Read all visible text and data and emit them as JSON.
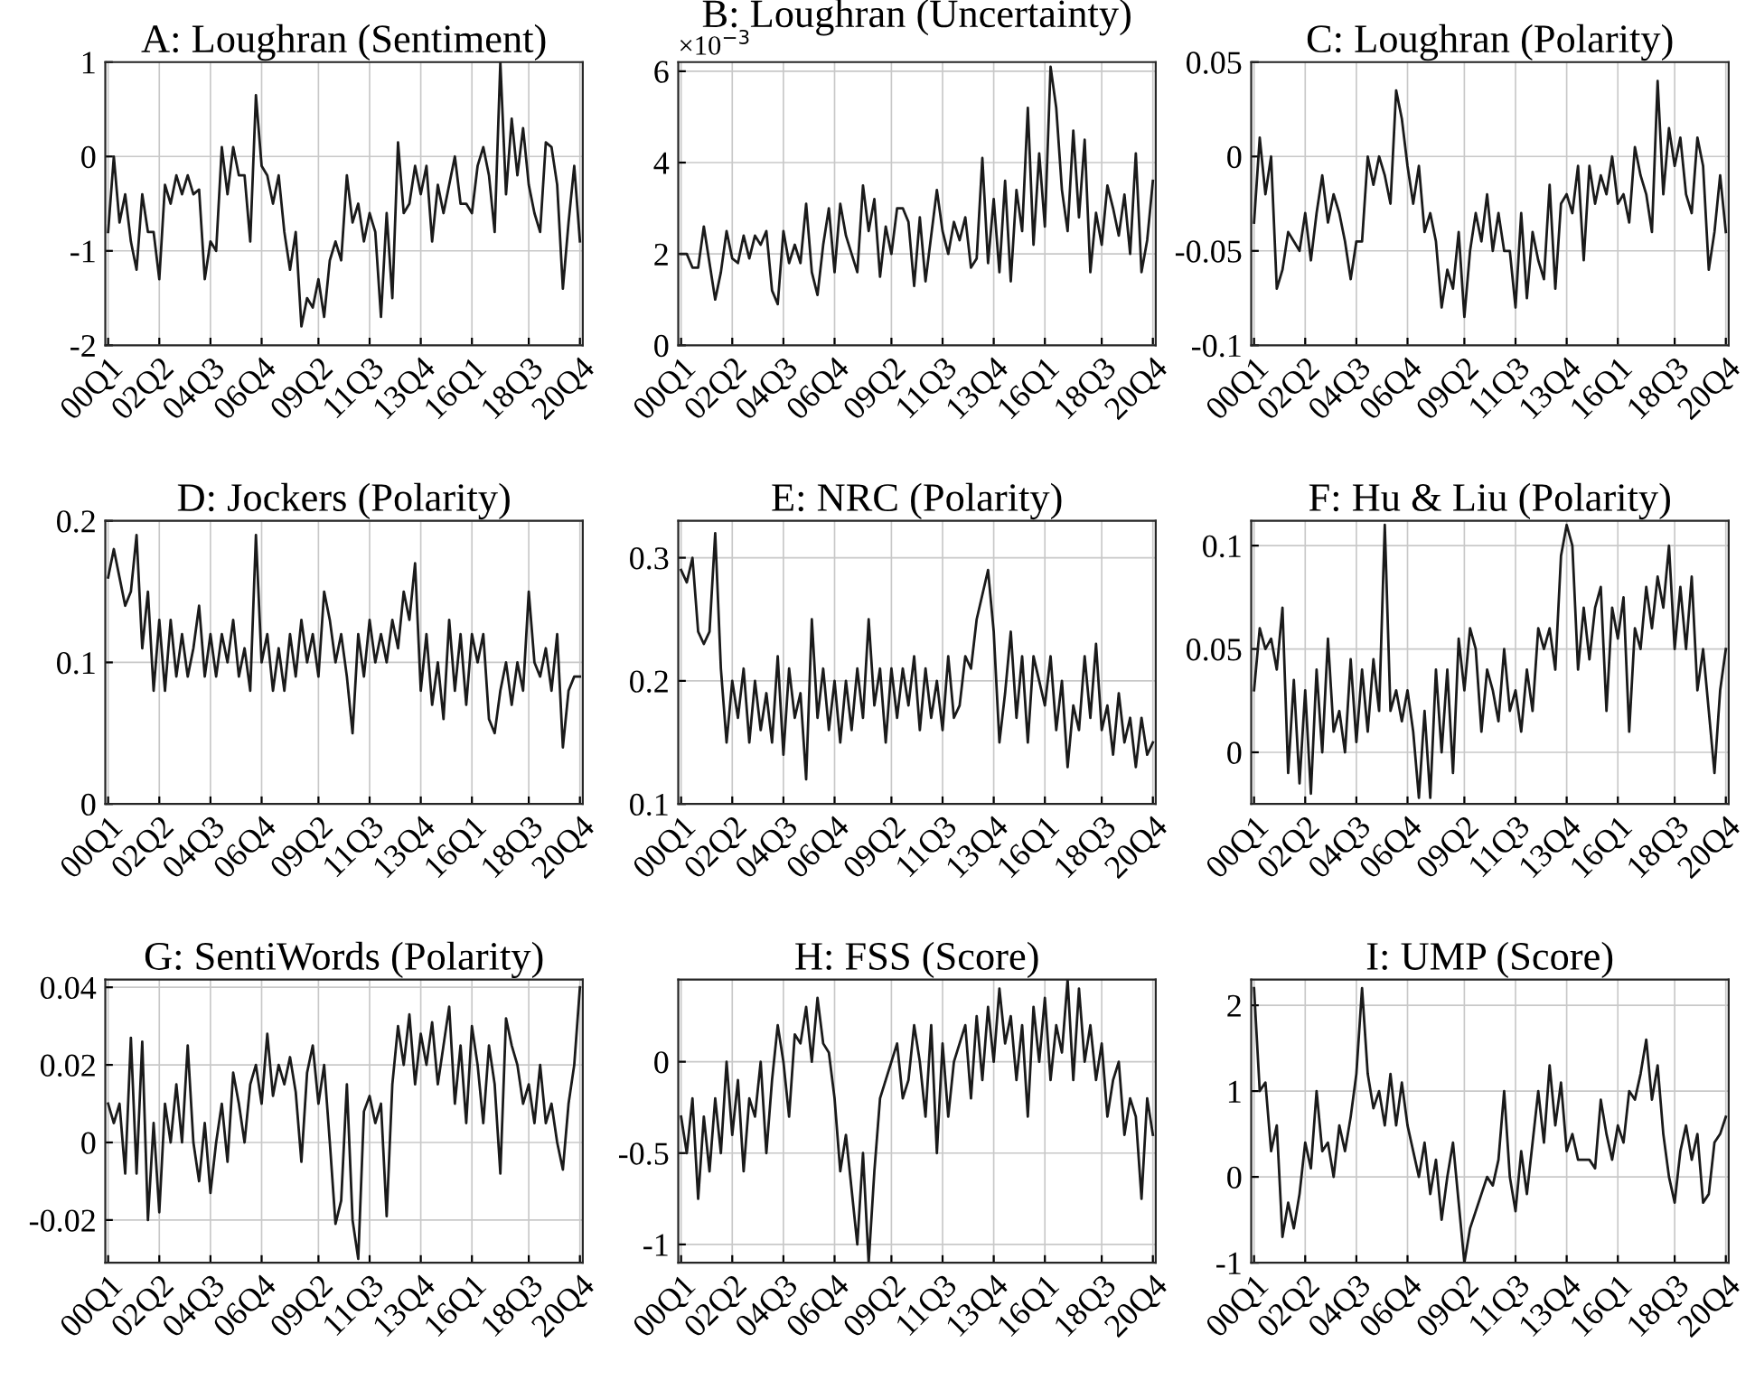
{
  "chart_data": [
    {
      "type": "line",
      "title": "A: Loughran (Sentiment)",
      "grid": true,
      "ylim": [
        -2,
        1
      ],
      "yticks": [
        -2,
        -1,
        0,
        1
      ],
      "categories": [
        "00Q1",
        null,
        null,
        null,
        null,
        null,
        null,
        null,
        null,
        "02Q2",
        null,
        null,
        null,
        null,
        null,
        null,
        null,
        null,
        "04Q3",
        null,
        null,
        null,
        null,
        null,
        null,
        null,
        null,
        "06Q4",
        null,
        null,
        null,
        null,
        null,
        null,
        null,
        null,
        null,
        "09Q2",
        null,
        null,
        null,
        null,
        null,
        null,
        null,
        null,
        "11Q3",
        null,
        null,
        null,
        null,
        null,
        null,
        null,
        null,
        "13Q4",
        null,
        null,
        null,
        null,
        null,
        null,
        null,
        null,
        "16Q1",
        null,
        null,
        null,
        null,
        null,
        null,
        null,
        null,
        null,
        "18Q3",
        null,
        null,
        null,
        null,
        null,
        null,
        null,
        null,
        "20Q4"
      ],
      "series": [
        {
          "color": "#1a1a1a",
          "values": [
            -0.8,
            0.0,
            -0.7,
            -0.4,
            -0.9,
            -1.2,
            -0.4,
            -0.8,
            -0.8,
            -1.3,
            -0.3,
            -0.5,
            -0.2,
            -0.4,
            -0.2,
            -0.4,
            -0.35,
            -1.3,
            -0.9,
            -1.0,
            0.1,
            -0.4,
            0.1,
            -0.2,
            -0.2,
            -0.9,
            0.65,
            -0.1,
            -0.2,
            -0.5,
            -0.2,
            -0.8,
            -1.2,
            -0.8,
            -1.8,
            -1.5,
            -1.6,
            -1.3,
            -1.7,
            -1.1,
            -0.9,
            -1.1,
            -0.2,
            -0.7,
            -0.5,
            -0.9,
            -0.6,
            -0.8,
            -1.7,
            -0.6,
            -1.5,
            0.15,
            -0.6,
            -0.5,
            -0.1,
            -0.4,
            -0.1,
            -0.9,
            -0.3,
            -0.6,
            -0.3,
            0.0,
            -0.5,
            -0.5,
            -0.6,
            -0.1,
            0.1,
            -0.2,
            -0.8,
            1.0,
            -0.4,
            0.4,
            -0.2,
            0.3,
            -0.3,
            -0.6,
            -0.8,
            0.15,
            0.1,
            -0.3,
            -1.4,
            -0.7,
            -0.1,
            -0.9
          ]
        }
      ]
    },
    {
      "type": "line",
      "title": "B: Loughran (Uncertainty)",
      "annotations": [
        "×10$^{−3}$"
      ],
      "grid": true,
      "ylim": [
        0,
        6.2
      ],
      "yticks": [
        0,
        2,
        4,
        6
      ],
      "categories": [
        "00Q1",
        null,
        null,
        null,
        null,
        null,
        null,
        null,
        null,
        "02Q2",
        null,
        null,
        null,
        null,
        null,
        null,
        null,
        null,
        "04Q3",
        null,
        null,
        null,
        null,
        null,
        null,
        null,
        null,
        "06Q4",
        null,
        null,
        null,
        null,
        null,
        null,
        null,
        null,
        null,
        "09Q2",
        null,
        null,
        null,
        null,
        null,
        null,
        null,
        null,
        "11Q3",
        null,
        null,
        null,
        null,
        null,
        null,
        null,
        null,
        "13Q4",
        null,
        null,
        null,
        null,
        null,
        null,
        null,
        null,
        "16Q1",
        null,
        null,
        null,
        null,
        null,
        null,
        null,
        null,
        null,
        "18Q3",
        null,
        null,
        null,
        null,
        null,
        null,
        null,
        null,
        "20Q4"
      ],
      "series": [
        {
          "color": "#1a1a1a",
          "values": [
            2.0,
            2.0,
            1.7,
            1.7,
            2.6,
            1.8,
            1.0,
            1.6,
            2.5,
            1.9,
            1.8,
            2.4,
            1.9,
            2.4,
            2.2,
            2.5,
            1.2,
            0.9,
            2.5,
            1.8,
            2.2,
            1.8,
            3.1,
            1.6,
            1.1,
            2.2,
            3.0,
            1.6,
            3.1,
            2.4,
            2.0,
            1.6,
            3.5,
            2.5,
            3.2,
            1.5,
            2.6,
            2.0,
            3.0,
            3.0,
            2.7,
            1.3,
            2.8,
            1.4,
            2.4,
            3.4,
            2.5,
            2.0,
            2.7,
            2.3,
            2.8,
            1.7,
            1.9,
            4.1,
            1.8,
            3.2,
            1.6,
            3.6,
            1.4,
            3.4,
            2.5,
            5.2,
            2.2,
            4.2,
            2.6,
            6.1,
            5.2,
            3.4,
            2.5,
            4.7,
            2.8,
            4.5,
            1.6,
            2.9,
            2.2,
            3.5,
            3.0,
            2.4,
            3.3,
            2.0,
            4.2,
            1.6,
            2.3,
            3.6
          ]
        }
      ]
    },
    {
      "type": "line",
      "title": "C: Loughran (Polarity)",
      "grid": true,
      "ylim": [
        -0.1,
        0.05
      ],
      "yticks": [
        -0.1,
        -0.05,
        0,
        0.05
      ],
      "categories": [
        "00Q1",
        null,
        null,
        null,
        null,
        null,
        null,
        null,
        null,
        "02Q2",
        null,
        null,
        null,
        null,
        null,
        null,
        null,
        null,
        "04Q3",
        null,
        null,
        null,
        null,
        null,
        null,
        null,
        null,
        "06Q4",
        null,
        null,
        null,
        null,
        null,
        null,
        null,
        null,
        null,
        "09Q2",
        null,
        null,
        null,
        null,
        null,
        null,
        null,
        null,
        "11Q3",
        null,
        null,
        null,
        null,
        null,
        null,
        null,
        null,
        "13Q4",
        null,
        null,
        null,
        null,
        null,
        null,
        null,
        null,
        "16Q1",
        null,
        null,
        null,
        null,
        null,
        null,
        null,
        null,
        null,
        "18Q3",
        null,
        null,
        null,
        null,
        null,
        null,
        null,
        null,
        "20Q4"
      ],
      "series": [
        {
          "color": "#1a1a1a",
          "values": [
            -0.035,
            0.01,
            -0.02,
            0.0,
            -0.07,
            -0.06,
            -0.04,
            -0.045,
            -0.05,
            -0.03,
            -0.055,
            -0.03,
            -0.01,
            -0.035,
            -0.02,
            -0.03,
            -0.045,
            -0.065,
            -0.045,
            -0.045,
            0.0,
            -0.015,
            0.0,
            -0.01,
            -0.025,
            0.035,
            0.02,
            -0.005,
            -0.025,
            -0.005,
            -0.04,
            -0.03,
            -0.045,
            -0.08,
            -0.06,
            -0.07,
            -0.04,
            -0.085,
            -0.05,
            -0.03,
            -0.045,
            -0.02,
            -0.05,
            -0.03,
            -0.05,
            -0.05,
            -0.08,
            -0.03,
            -0.075,
            -0.04,
            -0.055,
            -0.065,
            -0.015,
            -0.07,
            -0.025,
            -0.02,
            -0.03,
            -0.005,
            -0.055,
            -0.005,
            -0.025,
            -0.01,
            -0.02,
            0.0,
            -0.025,
            -0.02,
            -0.035,
            0.005,
            -0.01,
            -0.02,
            -0.04,
            0.04,
            -0.02,
            0.015,
            -0.005,
            0.01,
            -0.02,
            -0.03,
            0.01,
            -0.005,
            -0.06,
            -0.04,
            -0.01,
            -0.04
          ]
        }
      ]
    },
    {
      "type": "line",
      "title": "D: Jockers (Polarity)",
      "grid": true,
      "ylim": [
        0,
        0.2
      ],
      "yticks": [
        0,
        0.1,
        0.2
      ],
      "categories": [
        "00Q1",
        null,
        null,
        null,
        null,
        null,
        null,
        null,
        null,
        "02Q2",
        null,
        null,
        null,
        null,
        null,
        null,
        null,
        null,
        "04Q3",
        null,
        null,
        null,
        null,
        null,
        null,
        null,
        null,
        "06Q4",
        null,
        null,
        null,
        null,
        null,
        null,
        null,
        null,
        null,
        "09Q2",
        null,
        null,
        null,
        null,
        null,
        null,
        null,
        null,
        "11Q3",
        null,
        null,
        null,
        null,
        null,
        null,
        null,
        null,
        "13Q4",
        null,
        null,
        null,
        null,
        null,
        null,
        null,
        null,
        "16Q1",
        null,
        null,
        null,
        null,
        null,
        null,
        null,
        null,
        null,
        "18Q3",
        null,
        null,
        null,
        null,
        null,
        null,
        null,
        null,
        "20Q4"
      ],
      "series": [
        {
          "color": "#1a1a1a",
          "values": [
            0.16,
            0.18,
            0.16,
            0.14,
            0.15,
            0.19,
            0.11,
            0.15,
            0.08,
            0.13,
            0.08,
            0.13,
            0.09,
            0.12,
            0.09,
            0.11,
            0.14,
            0.09,
            0.12,
            0.09,
            0.12,
            0.1,
            0.13,
            0.09,
            0.11,
            0.08,
            0.19,
            0.1,
            0.12,
            0.08,
            0.11,
            0.08,
            0.12,
            0.09,
            0.13,
            0.1,
            0.12,
            0.09,
            0.15,
            0.13,
            0.1,
            0.12,
            0.09,
            0.05,
            0.12,
            0.09,
            0.13,
            0.1,
            0.12,
            0.1,
            0.13,
            0.11,
            0.15,
            0.13,
            0.17,
            0.08,
            0.12,
            0.07,
            0.1,
            0.06,
            0.13,
            0.08,
            0.12,
            0.07,
            0.12,
            0.1,
            0.12,
            0.06,
            0.05,
            0.08,
            0.1,
            0.07,
            0.1,
            0.08,
            0.15,
            0.1,
            0.09,
            0.11,
            0.08,
            0.12,
            0.04,
            0.08,
            0.09,
            0.09
          ]
        }
      ]
    },
    {
      "type": "line",
      "title": "E: NRC (Polarity)",
      "grid": true,
      "ylim": [
        0.1,
        0.33
      ],
      "yticks": [
        0.1,
        0.2,
        0.3
      ],
      "categories": [
        "00Q1",
        null,
        null,
        null,
        null,
        null,
        null,
        null,
        null,
        "02Q2",
        null,
        null,
        null,
        null,
        null,
        null,
        null,
        null,
        "04Q3",
        null,
        null,
        null,
        null,
        null,
        null,
        null,
        null,
        "06Q4",
        null,
        null,
        null,
        null,
        null,
        null,
        null,
        null,
        null,
        "09Q2",
        null,
        null,
        null,
        null,
        null,
        null,
        null,
        null,
        "11Q3",
        null,
        null,
        null,
        null,
        null,
        null,
        null,
        null,
        "13Q4",
        null,
        null,
        null,
        null,
        null,
        null,
        null,
        null,
        "16Q1",
        null,
        null,
        null,
        null,
        null,
        null,
        null,
        null,
        null,
        "18Q3",
        null,
        null,
        null,
        null,
        null,
        null,
        null,
        null,
        "20Q4"
      ],
      "series": [
        {
          "color": "#1a1a1a",
          "values": [
            0.29,
            0.28,
            0.3,
            0.24,
            0.23,
            0.24,
            0.32,
            0.21,
            0.15,
            0.2,
            0.17,
            0.21,
            0.15,
            0.2,
            0.16,
            0.19,
            0.15,
            0.22,
            0.14,
            0.21,
            0.17,
            0.19,
            0.12,
            0.25,
            0.17,
            0.21,
            0.16,
            0.2,
            0.15,
            0.2,
            0.16,
            0.21,
            0.17,
            0.25,
            0.18,
            0.21,
            0.15,
            0.21,
            0.17,
            0.21,
            0.18,
            0.22,
            0.16,
            0.21,
            0.17,
            0.2,
            0.16,
            0.22,
            0.17,
            0.18,
            0.22,
            0.21,
            0.25,
            0.27,
            0.29,
            0.24,
            0.15,
            0.19,
            0.24,
            0.17,
            0.22,
            0.15,
            0.22,
            0.2,
            0.18,
            0.22,
            0.16,
            0.2,
            0.13,
            0.18,
            0.16,
            0.22,
            0.17,
            0.23,
            0.16,
            0.18,
            0.14,
            0.19,
            0.15,
            0.17,
            0.13,
            0.17,
            0.14,
            0.15
          ]
        }
      ]
    },
    {
      "type": "line",
      "title": "F: Hu & Liu (Polarity)",
      "grid": true,
      "ylim": [
        -0.025,
        0.112
      ],
      "yticks": [
        0,
        0.05,
        0.1
      ],
      "categories": [
        "00Q1",
        null,
        null,
        null,
        null,
        null,
        null,
        null,
        null,
        "02Q2",
        null,
        null,
        null,
        null,
        null,
        null,
        null,
        null,
        "04Q3",
        null,
        null,
        null,
        null,
        null,
        null,
        null,
        null,
        "06Q4",
        null,
        null,
        null,
        null,
        null,
        null,
        null,
        null,
        null,
        "09Q2",
        null,
        null,
        null,
        null,
        null,
        null,
        null,
        null,
        "11Q3",
        null,
        null,
        null,
        null,
        null,
        null,
        null,
        null,
        "13Q4",
        null,
        null,
        null,
        null,
        null,
        null,
        null,
        null,
        "16Q1",
        null,
        null,
        null,
        null,
        null,
        null,
        null,
        null,
        null,
        "18Q3",
        null,
        null,
        null,
        null,
        null,
        null,
        null,
        null,
        "20Q4"
      ],
      "series": [
        {
          "color": "#1a1a1a",
          "values": [
            0.03,
            0.06,
            0.05,
            0.055,
            0.04,
            0.07,
            -0.01,
            0.035,
            -0.015,
            0.03,
            -0.02,
            0.04,
            0.0,
            0.055,
            0.01,
            0.02,
            0.0,
            0.045,
            0.005,
            0.04,
            0.01,
            0.045,
            0.02,
            0.11,
            0.02,
            0.03,
            0.015,
            0.03,
            0.01,
            -0.022,
            0.02,
            -0.022,
            0.04,
            0.0,
            0.04,
            -0.01,
            0.055,
            0.03,
            0.06,
            0.05,
            0.01,
            0.04,
            0.03,
            0.015,
            0.05,
            0.02,
            0.03,
            0.01,
            0.04,
            0.02,
            0.06,
            0.05,
            0.06,
            0.04,
            0.095,
            0.11,
            0.1,
            0.04,
            0.07,
            0.045,
            0.07,
            0.08,
            0.02,
            0.07,
            0.055,
            0.075,
            0.01,
            0.06,
            0.05,
            0.08,
            0.06,
            0.085,
            0.07,
            0.1,
            0.05,
            0.08,
            0.05,
            0.085,
            0.03,
            0.05,
            0.02,
            -0.01,
            0.03,
            0.05
          ]
        }
      ]
    },
    {
      "type": "line",
      "title": "G: SentiWords (Polarity)",
      "grid": true,
      "ylim": [
        -0.031,
        0.042
      ],
      "yticks": [
        -0.02,
        0,
        0.02,
        0.04
      ],
      "categories": [
        "00Q1",
        null,
        null,
        null,
        null,
        null,
        null,
        null,
        null,
        "02Q2",
        null,
        null,
        null,
        null,
        null,
        null,
        null,
        null,
        "04Q3",
        null,
        null,
        null,
        null,
        null,
        null,
        null,
        null,
        "06Q4",
        null,
        null,
        null,
        null,
        null,
        null,
        null,
        null,
        null,
        "09Q2",
        null,
        null,
        null,
        null,
        null,
        null,
        null,
        null,
        "11Q3",
        null,
        null,
        null,
        null,
        null,
        null,
        null,
        null,
        "13Q4",
        null,
        null,
        null,
        null,
        null,
        null,
        null,
        null,
        "16Q1",
        null,
        null,
        null,
        null,
        null,
        null,
        null,
        null,
        null,
        "18Q3",
        null,
        null,
        null,
        null,
        null,
        null,
        null,
        null,
        "20Q4"
      ],
      "series": [
        {
          "color": "#1a1a1a",
          "values": [
            0.01,
            0.005,
            0.01,
            -0.008,
            0.027,
            -0.008,
            0.026,
            -0.02,
            0.005,
            -0.018,
            0.01,
            0.0,
            0.015,
            0.0,
            0.025,
            0.0,
            -0.01,
            0.005,
            -0.013,
            0.0,
            0.01,
            -0.005,
            0.018,
            0.01,
            0.0,
            0.015,
            0.02,
            0.01,
            0.028,
            0.012,
            0.02,
            0.015,
            0.022,
            0.013,
            -0.005,
            0.018,
            0.025,
            0.01,
            0.02,
            0.0,
            -0.021,
            -0.015,
            0.015,
            -0.02,
            -0.03,
            0.008,
            0.012,
            0.005,
            0.01,
            -0.019,
            0.015,
            0.03,
            0.02,
            0.033,
            0.015,
            0.028,
            0.02,
            0.031,
            0.015,
            0.025,
            0.035,
            0.01,
            0.025,
            0.005,
            0.03,
            0.02,
            0.005,
            0.025,
            0.015,
            -0.008,
            0.032,
            0.025,
            0.02,
            0.01,
            0.015,
            0.005,
            0.02,
            0.005,
            0.01,
            0.0,
            -0.007,
            0.01,
            0.02,
            0.04
          ]
        }
      ]
    },
    {
      "type": "line",
      "title": "H: FSS (Score)",
      "grid": true,
      "ylim": [
        -1.1,
        0.45
      ],
      "yticks": [
        -1,
        -0.5,
        0
      ],
      "categories": [
        "00Q1",
        null,
        null,
        null,
        null,
        null,
        null,
        null,
        null,
        "02Q2",
        null,
        null,
        null,
        null,
        null,
        null,
        null,
        null,
        "04Q3",
        null,
        null,
        null,
        null,
        null,
        null,
        null,
        null,
        "06Q4",
        null,
        null,
        null,
        null,
        null,
        null,
        null,
        null,
        null,
        "09Q2",
        null,
        null,
        null,
        null,
        null,
        null,
        null,
        null,
        "11Q3",
        null,
        null,
        null,
        null,
        null,
        null,
        null,
        null,
        "13Q4",
        null,
        null,
        null,
        null,
        null,
        null,
        null,
        null,
        "16Q1",
        null,
        null,
        null,
        null,
        null,
        null,
        null,
        null,
        null,
        "18Q3",
        null,
        null,
        null,
        null,
        null,
        null,
        null,
        null,
        "20Q4"
      ],
      "series": [
        {
          "color": "#1a1a1a",
          "values": [
            -0.3,
            -0.5,
            -0.2,
            -0.75,
            -0.3,
            -0.6,
            -0.2,
            -0.5,
            0.0,
            -0.4,
            -0.1,
            -0.6,
            -0.2,
            -0.3,
            0.0,
            -0.5,
            -0.1,
            0.2,
            0.0,
            -0.3,
            0.15,
            0.1,
            0.3,
            0.0,
            0.35,
            0.1,
            0.05,
            -0.2,
            -0.6,
            -0.4,
            -0.7,
            -1.0,
            -0.5,
            -1.1,
            -0.6,
            -0.2,
            -0.1,
            0.0,
            0.1,
            -0.2,
            -0.1,
            0.2,
            0.0,
            -0.3,
            0.2,
            -0.5,
            0.1,
            -0.3,
            0.0,
            0.1,
            0.2,
            -0.2,
            0.25,
            -0.1,
            0.3,
            0.0,
            0.4,
            0.1,
            0.25,
            -0.1,
            0.2,
            -0.3,
            0.3,
            0.0,
            0.35,
            -0.1,
            0.2,
            0.05,
            0.45,
            -0.1,
            0.4,
            0.0,
            0.2,
            -0.1,
            0.1,
            -0.3,
            -0.1,
            0.0,
            -0.4,
            -0.2,
            -0.3,
            -0.75,
            -0.2,
            -0.4
          ]
        }
      ]
    },
    {
      "type": "line",
      "title": "I: UMP (Score)",
      "grid": true,
      "ylim": [
        -1,
        2.3
      ],
      "yticks": [
        -1,
        0,
        1,
        2
      ],
      "categories": [
        "00Q1",
        null,
        null,
        null,
        null,
        null,
        null,
        null,
        null,
        "02Q2",
        null,
        null,
        null,
        null,
        null,
        null,
        null,
        null,
        "04Q3",
        null,
        null,
        null,
        null,
        null,
        null,
        null,
        null,
        "06Q4",
        null,
        null,
        null,
        null,
        null,
        null,
        null,
        null,
        null,
        "09Q2",
        null,
        null,
        null,
        null,
        null,
        null,
        null,
        null,
        "11Q3",
        null,
        null,
        null,
        null,
        null,
        null,
        null,
        null,
        "13Q4",
        null,
        null,
        null,
        null,
        null,
        null,
        null,
        null,
        "16Q1",
        null,
        null,
        null,
        null,
        null,
        null,
        null,
        null,
        null,
        "18Q3",
        null,
        null,
        null,
        null,
        null,
        null,
        null,
        null,
        "20Q4"
      ],
      "series": [
        {
          "color": "#1a1a1a",
          "values": [
            2.2,
            1.0,
            1.1,
            0.3,
            0.6,
            -0.7,
            -0.3,
            -0.6,
            -0.2,
            0.4,
            0.1,
            1.0,
            0.3,
            0.4,
            0.0,
            0.6,
            0.3,
            0.7,
            1.2,
            2.2,
            1.2,
            0.8,
            1.0,
            0.6,
            1.2,
            0.6,
            1.1,
            0.6,
            0.3,
            0.0,
            0.4,
            -0.2,
            0.2,
            -0.5,
            0.0,
            0.4,
            -0.3,
            -1.0,
            -0.6,
            -0.4,
            -0.2,
            0.0,
            -0.1,
            0.2,
            1.0,
            0.0,
            -0.4,
            0.3,
            -0.2,
            0.4,
            1.0,
            0.4,
            1.3,
            0.6,
            1.1,
            0.3,
            0.5,
            0.2,
            0.2,
            0.2,
            0.1,
            0.9,
            0.5,
            0.2,
            0.6,
            0.4,
            1.0,
            0.9,
            1.2,
            1.6,
            0.9,
            1.3,
            0.5,
            0.0,
            -0.3,
            0.3,
            0.6,
            0.2,
            0.5,
            -0.3,
            -0.2,
            0.4,
            0.5,
            0.7
          ]
        }
      ]
    }
  ]
}
